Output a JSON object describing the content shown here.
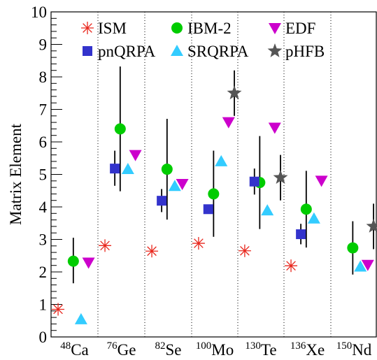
{
  "chart_data": {
    "type": "scatter",
    "title": "",
    "xlabel": "",
    "ylabel": "Matrix Element",
    "ylim": [
      0,
      10
    ],
    "y_ticks": [
      "0",
      "1",
      "2",
      "3",
      "4",
      "5",
      "6",
      "7",
      "8",
      "9",
      "10"
    ],
    "grid": false,
    "category_separators": "dotted",
    "legend_position": "top",
    "categories": [
      {
        "mass": "48",
        "element": "Ca"
      },
      {
        "mass": "76",
        "element": "Ge"
      },
      {
        "mass": "82",
        "element": "Se"
      },
      {
        "mass": "100",
        "element": "Mo"
      },
      {
        "mass": "130",
        "element": "Te"
      },
      {
        "mass": "136",
        "element": "Xe"
      },
      {
        "mass": "150",
        "element": "Nd"
      }
    ],
    "series": [
      {
        "name": "ISM",
        "marker": "asterisk",
        "color": "#e8261c",
        "points": [
          {
            "category": "Ca",
            "y": 0.85
          },
          {
            "category": "Ge",
            "y": 2.81
          },
          {
            "category": "Se",
            "y": 2.64
          },
          {
            "category": "Mo",
            "y": 2.88
          },
          {
            "category": "Te",
            "y": 2.65
          },
          {
            "category": "Xe",
            "y": 2.19
          }
        ]
      },
      {
        "name": "IBM-2",
        "marker": "circle",
        "color": "#00cc00",
        "points": [
          {
            "category": "Ca",
            "y": 2.33,
            "err_low": 1.65,
            "err_high": 3.05
          },
          {
            "category": "Ge",
            "y": 6.4,
            "err_low": 4.48,
            "err_high": 8.32
          },
          {
            "category": "Se",
            "y": 5.16,
            "err_low": 3.61,
            "err_high": 6.71
          },
          {
            "category": "Mo",
            "y": 4.4,
            "err_low": 3.08,
            "err_high": 5.73
          },
          {
            "category": "Te",
            "y": 4.75,
            "err_low": 3.32,
            "err_high": 6.18
          },
          {
            "category": "Xe",
            "y": 3.93,
            "err_low": 2.75,
            "err_high": 5.11
          },
          {
            "category": "Nd",
            "y": 2.74,
            "err_low": 1.92,
            "err_high": 3.56
          }
        ]
      },
      {
        "name": "EDF",
        "marker": "triangle-down",
        "color": "#cc00cc",
        "points": [
          {
            "category": "Ca",
            "y": 2.29
          },
          {
            "category": "Ge",
            "y": 5.6
          },
          {
            "category": "Se",
            "y": 4.71
          },
          {
            "category": "Mo",
            "y": 6.61
          },
          {
            "category": "Te",
            "y": 6.44
          },
          {
            "category": "Xe",
            "y": 4.81
          },
          {
            "category": "Nd",
            "y": 2.22
          }
        ]
      },
      {
        "name": "pnQRPA",
        "marker": "square",
        "color": "#3333cc",
        "points": [
          {
            "category": "Ge",
            "y": 5.18,
            "err_low": 4.65,
            "err_high": 5.73
          },
          {
            "category": "Se",
            "y": 4.19,
            "err_low": 3.84,
            "err_high": 4.55
          },
          {
            "category": "Mo",
            "y": 3.93
          },
          {
            "category": "Te",
            "y": 4.78,
            "err_low": 4.38,
            "err_high": 5.18
          },
          {
            "category": "Xe",
            "y": 3.16,
            "err_low": 2.85,
            "err_high": 3.48
          }
        ]
      },
      {
        "name": "SRQRPA",
        "marker": "triangle-up",
        "color": "#33ccff",
        "points": [
          {
            "category": "Ca",
            "y": 0.54
          },
          {
            "category": "Ge",
            "y": 5.16
          },
          {
            "category": "Se",
            "y": 4.64
          },
          {
            "category": "Mo",
            "y": 5.4
          },
          {
            "category": "Te",
            "y": 3.89
          },
          {
            "category": "Xe",
            "y": 3.64
          },
          {
            "category": "Nd",
            "y": 2.16
          }
        ]
      },
      {
        "name": "pHFB",
        "marker": "star",
        "color": "#555555",
        "points": [
          {
            "category": "Mo",
            "y": 7.5,
            "err_low": 6.8,
            "err_high": 8.2
          },
          {
            "category": "Te",
            "y": 4.9,
            "err_low": 4.2,
            "err_high": 5.6
          },
          {
            "category": "Nd",
            "y": 3.4,
            "err_low": 2.7,
            "err_high": 4.1
          }
        ]
      }
    ]
  }
}
